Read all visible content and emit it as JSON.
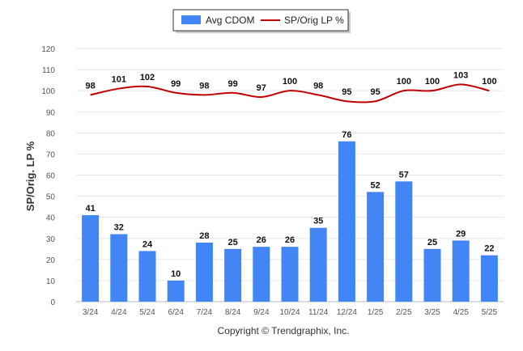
{
  "chart_data": {
    "type": "bar",
    "title": "",
    "ylabel": "SP/Orig. LP %",
    "xlabel": "",
    "ylim": [
      0,
      120
    ],
    "yticks": [
      0,
      10,
      20,
      30,
      40,
      50,
      60,
      70,
      80,
      90,
      100,
      110,
      120
    ],
    "grid": true,
    "legend_position": "top-center",
    "categories": [
      "3/24",
      "4/24",
      "5/24",
      "6/24",
      "7/24",
      "8/24",
      "9/24",
      "10/24",
      "11/24",
      "12/24",
      "1/25",
      "2/25",
      "3/25",
      "4/25",
      "5/25"
    ],
    "series": [
      {
        "name": "Avg CDOM",
        "type": "bar",
        "color": "#4285f4",
        "values": [
          41,
          32,
          24,
          10,
          28,
          25,
          26,
          26,
          35,
          76,
          52,
          57,
          25,
          29,
          22
        ]
      },
      {
        "name": "SP/Orig LP %",
        "type": "line",
        "color": "#c00000",
        "values": [
          98,
          101,
          102,
          99,
          98,
          99,
          97,
          100,
          98,
          95,
          95,
          100,
          100,
          103,
          100
        ]
      }
    ],
    "credit": "Copyright © Trendgraphix, Inc."
  }
}
